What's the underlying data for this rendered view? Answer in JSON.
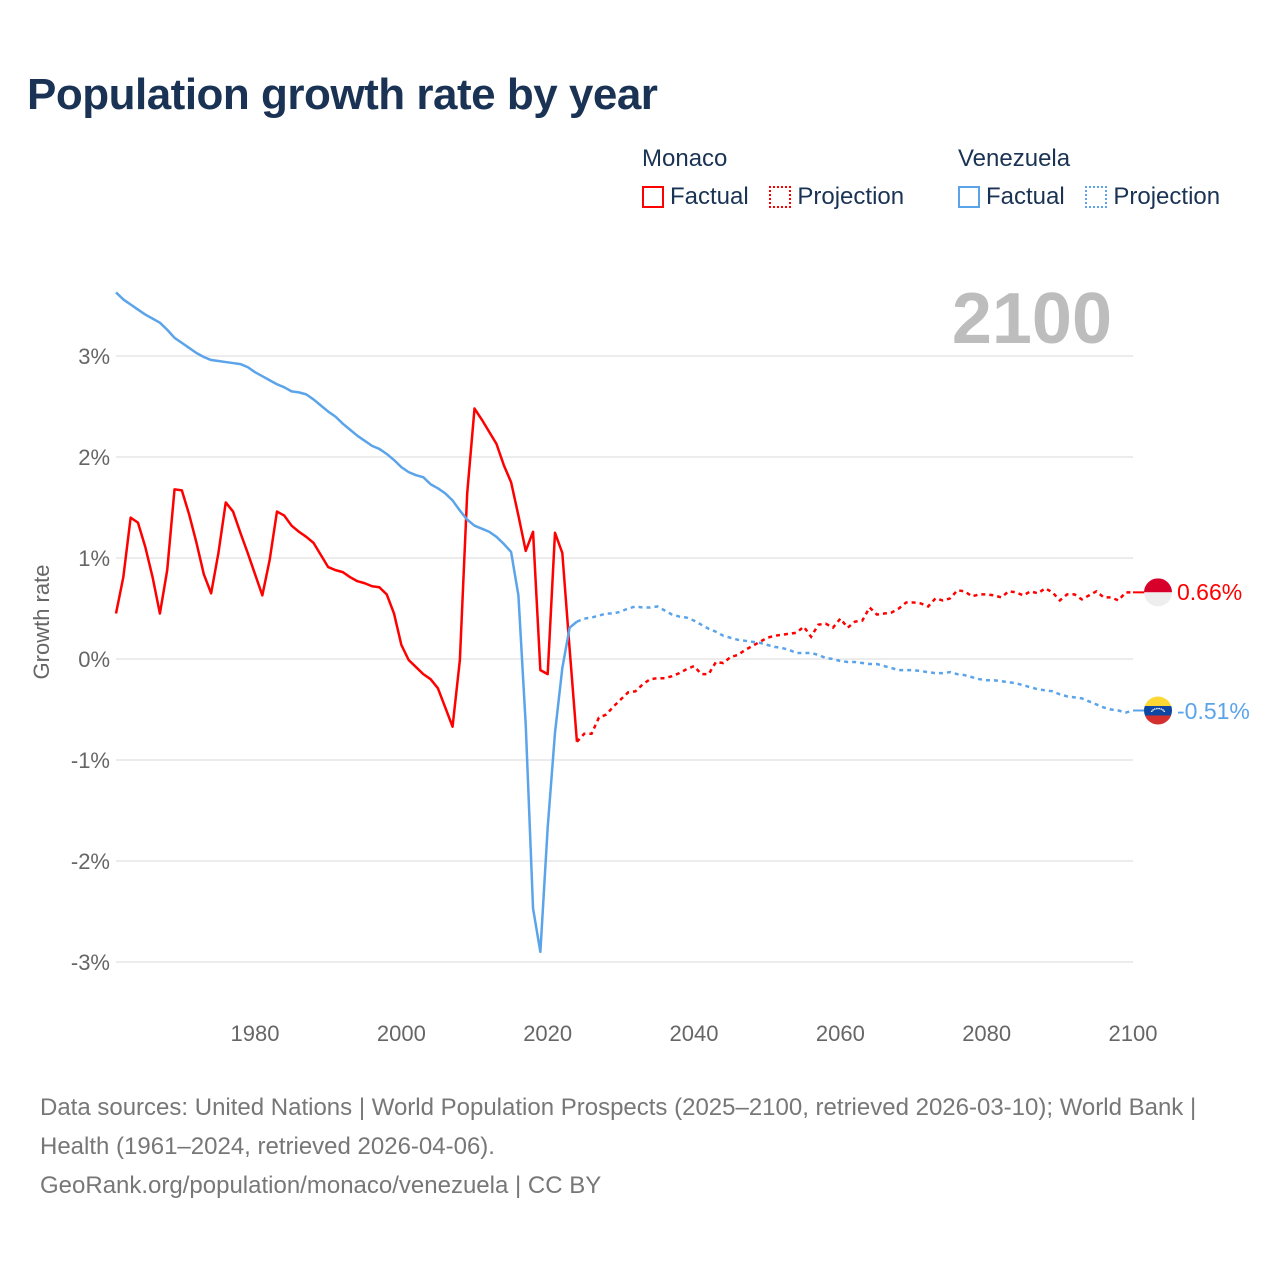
{
  "title": "Population growth rate by year",
  "year_display": "2100",
  "legend": {
    "groups": [
      {
        "name": "Monaco",
        "factual": "Factual",
        "projection": "Projection"
      },
      {
        "name": "Venezuela",
        "factual": "Factual",
        "projection": "Projection"
      }
    ]
  },
  "source": {
    "line1": "Data sources: United Nations | World Population Prospects (2025–2100, retrieved 2026-03-10); World Bank | Health (1961–2024, retrieved 2026-04-06).",
    "line2": "GeoRank.org/population/monaco/venezuela | CC BY"
  },
  "chart_data": {
    "type": "line",
    "title": "Population growth rate by year",
    "xlabel": "",
    "ylabel": "Growth rate",
    "xlim": [
      1961,
      2100
    ],
    "ylim": [
      -3.5,
      3.8
    ],
    "grid": true,
    "legend_position": "top-right",
    "x_ticks": [
      1980,
      2000,
      2020,
      2040,
      2060,
      2080,
      2100
    ],
    "x_tick_labels": [
      "1980",
      "2000",
      "2020",
      "2040",
      "2060",
      "2080",
      "2100"
    ],
    "y_ticks": [
      3,
      2,
      1,
      0,
      -1,
      -2,
      -3
    ],
    "y_tick_labels": [
      "3%",
      "2%",
      "1%",
      "0%",
      "-1%",
      "-2%",
      "-3%"
    ],
    "series": [
      {
        "name": "Monaco",
        "color": "#ff0000",
        "end_label": "0.66%",
        "factual": {
          "start_year": 1961,
          "values": [
            0.45,
            0.81,
            1.4,
            1.35,
            1.11,
            0.81,
            0.45,
            0.88,
            1.68,
            1.67,
            1.43,
            1.15,
            0.84,
            0.65,
            1.05,
            1.55,
            1.46,
            1.25,
            1.05,
            0.84,
            0.63,
            0.98,
            1.46,
            1.42,
            1.32,
            1.26,
            1.21,
            1.15,
            1.03,
            0.91,
            0.88,
            0.86,
            0.81,
            0.77,
            0.75,
            0.72,
            0.71,
            0.64,
            0.45,
            0.14,
            -0.01,
            -0.08,
            -0.15,
            -0.2,
            -0.29,
            -0.48,
            -0.67,
            -0.01,
            1.64,
            2.48,
            2.37,
            2.25,
            2.13,
            1.92,
            1.75,
            1.42,
            1.07,
            1.26,
            -0.11,
            -0.15,
            1.25,
            1.05,
            0.1,
            -0.82
          ]
        },
        "projection": {
          "start_year": 2025,
          "values": [
            -0.74,
            -0.74,
            -0.58,
            -0.55,
            -0.47,
            -0.4,
            -0.33,
            -0.32,
            -0.25,
            -0.2,
            -0.19,
            -0.19,
            -0.17,
            -0.14,
            -0.1,
            -0.07,
            -0.15,
            -0.15,
            -0.03,
            -0.04,
            0.02,
            0.04,
            0.09,
            0.13,
            0.17,
            0.21,
            0.23,
            0.24,
            0.25,
            0.26,
            0.32,
            0.22,
            0.34,
            0.35,
            0.31,
            0.4,
            0.31,
            0.37,
            0.38,
            0.51,
            0.44,
            0.45,
            0.46,
            0.5,
            0.56,
            0.56,
            0.55,
            0.52,
            0.6,
            0.58,
            0.6,
            0.68,
            0.67,
            0.62,
            0.64,
            0.64,
            0.63,
            0.61,
            0.67,
            0.66,
            0.63,
            0.67,
            0.65,
            0.7,
            0.66,
            0.58,
            0.64,
            0.64,
            0.59,
            0.63,
            0.67,
            0.61,
            0.61,
            0.58,
            0.66,
            0.66
          ]
        }
      },
      {
        "name": "Venezuela",
        "color": "#5ba4ea",
        "end_label": "-0.51%",
        "factual": {
          "start_year": 1961,
          "values": [
            3.63,
            3.56,
            3.51,
            3.46,
            3.41,
            3.37,
            3.33,
            3.26,
            3.18,
            3.13,
            3.08,
            3.03,
            2.99,
            2.96,
            2.95,
            2.94,
            2.93,
            2.92,
            2.89,
            2.84,
            2.8,
            2.76,
            2.72,
            2.69,
            2.65,
            2.64,
            2.62,
            2.57,
            2.51,
            2.45,
            2.4,
            2.33,
            2.27,
            2.21,
            2.16,
            2.11,
            2.08,
            2.03,
            1.97,
            1.9,
            1.85,
            1.82,
            1.8,
            1.73,
            1.69,
            1.64,
            1.57,
            1.47,
            1.38,
            1.32,
            1.29,
            1.26,
            1.21,
            1.14,
            1.06,
            0.63,
            -0.65,
            -2.47,
            -2.9,
            -1.67,
            -0.73,
            -0.09,
            0.31,
            0.37
          ]
        },
        "projection": {
          "start_year": 2025,
          "values": [
            0.4,
            0.41,
            0.43,
            0.45,
            0.45,
            0.47,
            0.5,
            0.52,
            0.51,
            0.51,
            0.52,
            0.48,
            0.44,
            0.42,
            0.41,
            0.38,
            0.34,
            0.3,
            0.27,
            0.23,
            0.21,
            0.19,
            0.18,
            0.17,
            0.16,
            0.14,
            0.12,
            0.11,
            0.09,
            0.06,
            0.06,
            0.06,
            0.04,
            0.01,
            0.0,
            -0.02,
            -0.03,
            -0.03,
            -0.04,
            -0.05,
            -0.05,
            -0.07,
            -0.09,
            -0.11,
            -0.11,
            -0.11,
            -0.12,
            -0.13,
            -0.14,
            -0.14,
            -0.13,
            -0.15,
            -0.16,
            -0.18,
            -0.2,
            -0.21,
            -0.21,
            -0.22,
            -0.23,
            -0.24,
            -0.26,
            -0.28,
            -0.3,
            -0.31,
            -0.32,
            -0.35,
            -0.37,
            -0.38,
            -0.39,
            -0.42,
            -0.45,
            -0.48,
            -0.5,
            -0.51,
            -0.53,
            -0.51
          ]
        }
      }
    ]
  }
}
